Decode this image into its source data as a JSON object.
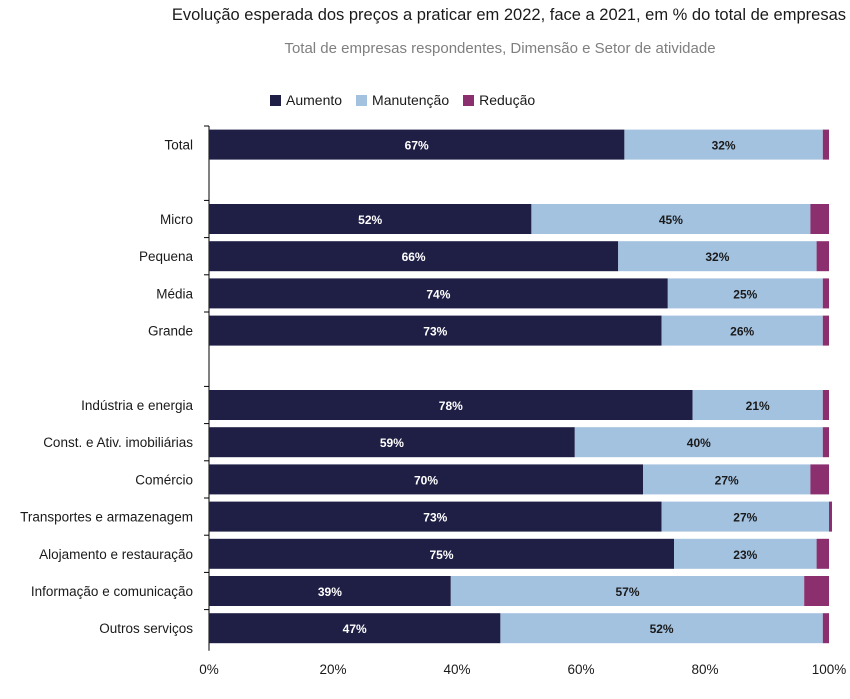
{
  "title": "Evolução esperada dos preços a praticar em 2022, face a 2021, em % do total de empresas",
  "subtitle": "Total de empresas respondentes, Dimensão e Setor de atividade",
  "colors": {
    "aumento": "#1f1f45",
    "manutencao": "#a3c2e0",
    "reducao": "#8c2f6e"
  },
  "chart_data": {
    "type": "bar",
    "orientation": "horizontal",
    "stacked": true,
    "percent_stacked": true,
    "categories": [
      "Total",
      "Micro",
      "Pequena",
      "Média",
      "Grande",
      "Indústria e energia",
      "Const. e Ativ. imobiliárias",
      "Comércio",
      "Transportes e armazenagem",
      "Alojamento e restauração",
      "Informação e comunicação",
      "Outros serviços"
    ],
    "category_groups": [
      [
        "Total"
      ],
      [
        "Micro",
        "Pequena",
        "Média",
        "Grande"
      ],
      [
        "Indústria e energia",
        "Const. e Ativ. imobiliárias",
        "Comércio",
        "Transportes e armazenagem",
        "Alojamento e restauração",
        "Informação e comunicação",
        "Outros serviços"
      ]
    ],
    "series": [
      {
        "name": "Aumento",
        "values": [
          67,
          52,
          66,
          74,
          73,
          78,
          59,
          70,
          73,
          75,
          39,
          47
        ],
        "labels": [
          "67%",
          "52%",
          "66%",
          "74%",
          "73%",
          "78%",
          "59%",
          "70%",
          "73%",
          "75%",
          "39%",
          "47%"
        ]
      },
      {
        "name": "Manutenção",
        "values": [
          32,
          45,
          32,
          25,
          26,
          21,
          40,
          27,
          27,
          23,
          57,
          52
        ],
        "labels": [
          "32%",
          "45%",
          "32%",
          "25%",
          "26%",
          "21%",
          "40%",
          "27%",
          "27%",
          "23%",
          "57%",
          "52%"
        ]
      },
      {
        "name": "Redução",
        "values": [
          1,
          3,
          2,
          1,
          1,
          1,
          1,
          3,
          0,
          2,
          4,
          1
        ]
      }
    ],
    "xlim": [
      0,
      100
    ],
    "x_ticks": [
      "0%",
      "20%",
      "40%",
      "60%",
      "80%",
      "100%"
    ],
    "grid": false,
    "legend_position": "top"
  }
}
